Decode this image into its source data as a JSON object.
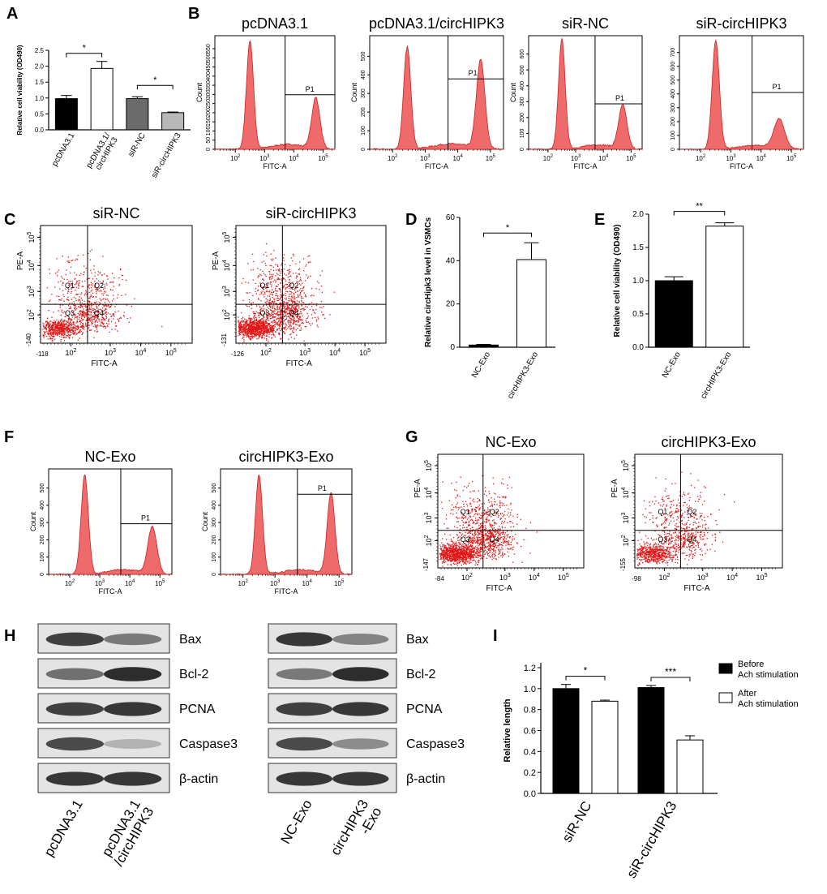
{
  "panels": {
    "A": "A",
    "B": "B",
    "C": "C",
    "D": "D",
    "E": "E",
    "F": "F",
    "G": "G",
    "H": "H",
    "I": "I"
  },
  "colors": {
    "histogram_fill": "#ef6a6a",
    "histogram_stroke": "#cc2222",
    "dots": "#e01818",
    "black": "#000000",
    "white": "#ffffff",
    "darkgray": "#6b6b6b",
    "lightgray": "#b8b8b8"
  },
  "chart_data": [
    {
      "id": "A",
      "type": "bar",
      "ylabel": "Relative cell viability (OD490)",
      "ylim": [
        0,
        2.5
      ],
      "yticks": [
        "0.0",
        "0.5",
        "1.0",
        "1.5",
        "2.0",
        "2.5"
      ],
      "categories": [
        "pcDNA3.1",
        "pcDNA3.1/ circHIPK3",
        "siR-NC",
        "siR-circHIPK3"
      ],
      "values": [
        0.98,
        1.93,
        0.98,
        0.54
      ],
      "errors": [
        0.1,
        0.22,
        0.06,
        0.02
      ],
      "fills": [
        "black",
        "white",
        "darkgray",
        "lightgray"
      ],
      "significance": [
        "*",
        "*"
      ]
    },
    {
      "id": "D",
      "type": "bar",
      "ylabel": "Relative circHipk3  level in VSMCs",
      "ylim": [
        0,
        60
      ],
      "yticks": [
        "0",
        "20",
        "40",
        "60"
      ],
      "categories": [
        "NC-Exo",
        "circHIPK3-Exo"
      ],
      "values": [
        1,
        40.5
      ],
      "errors": [
        0.3,
        7.8
      ],
      "fills": [
        "black",
        "white"
      ],
      "significance": [
        "*"
      ]
    },
    {
      "id": "E",
      "type": "bar",
      "ylabel": "Relative cell viability (OD490)",
      "ylim": [
        0,
        2.0
      ],
      "yticks": [
        "0.0",
        "0.5",
        "1.0",
        "1.5",
        "2.0"
      ],
      "categories": [
        "NC-Exo",
        "circHIPK3-Exo"
      ],
      "values": [
        1.0,
        1.82
      ],
      "errors": [
        0.06,
        0.05
      ],
      "fills": [
        "black",
        "white"
      ],
      "significance": [
        "**"
      ]
    },
    {
      "id": "I",
      "type": "bar",
      "ylabel": "Relative length",
      "ylim": [
        0,
        1.2
      ],
      "yticks": [
        "0.0",
        "0.2",
        "0.4",
        "0.6",
        "0.8",
        "1.0",
        "1.2"
      ],
      "categories": [
        "siR-NC",
        "siR-circHIPK3"
      ],
      "series": [
        {
          "name": "Before Ach stimulation",
          "values": [
            1.0,
            1.01
          ],
          "errors": [
            0.04,
            0.02
          ]
        },
        {
          "name": "After Ach stimulation",
          "values": [
            0.88,
            0.51
          ],
          "errors": [
            0.01,
            0.04
          ]
        }
      ],
      "legend": [
        {
          "line1": "Before",
          "line2": "Ach stimulation"
        },
        {
          "line1": "After",
          "line2": "Ach stimulation"
        }
      ],
      "significance": [
        "*",
        "***"
      ]
    }
  ],
  "histograms": [
    {
      "panel": "B",
      "title": "pcDNA3.1",
      "ylabel": "Count",
      "xlabel": "FITC-A",
      "gate": "P1",
      "yticks": [
        "0",
        "50",
        "100",
        "150",
        "200",
        "250",
        "300",
        "350",
        "400",
        "450",
        "500",
        "550"
      ],
      "ymax": 570,
      "peaks": [
        {
          "x": 2.5,
          "h": 545,
          "w": 0.12
        },
        {
          "x": 4.75,
          "h": 255,
          "w": 0.14
        }
      ],
      "gate_level": 0.48
    },
    {
      "panel": "B",
      "title": "pcDNA3.1/circHIPK3",
      "ylabel": "Count",
      "xlabel": "FITC-A",
      "gate": "P1",
      "yticks": [
        "0",
        "100",
        "200",
        "300",
        "400",
        "500"
      ],
      "ymax": 520,
      "peaks": [
        {
          "x": 2.45,
          "h": 470,
          "w": 0.11
        },
        {
          "x": 4.7,
          "h": 405,
          "w": 0.13
        }
      ],
      "gate_level": 0.62
    },
    {
      "panel": "B",
      "title": "siR-NC",
      "ylabel": "Count",
      "xlabel": "FITC-A",
      "gate": "P1",
      "yticks": [
        "0",
        "100",
        "200",
        "300",
        "400",
        "500",
        "600"
      ],
      "ymax": 630,
      "peaks": [
        {
          "x": 2.5,
          "h": 610,
          "w": 0.12
        },
        {
          "x": 4.7,
          "h": 240,
          "w": 0.15
        }
      ],
      "gate_level": 0.4
    },
    {
      "panel": "B",
      "title": "siR-circHIPK3",
      "ylabel": "",
      "xlabel": "FITC-A",
      "gate": "P1",
      "yticks": [
        "0",
        "100",
        "200",
        "300",
        "400",
        "500",
        "600",
        "700"
      ],
      "ymax": 740,
      "peaks": [
        {
          "x": 2.5,
          "h": 710,
          "w": 0.12
        },
        {
          "x": 4.6,
          "h": 190,
          "w": 0.18
        }
      ],
      "gate_level": 0.5
    },
    {
      "panel": "F",
      "title": "NC-Exo",
      "ylabel": "Count",
      "xlabel": "FITC-A",
      "gate": "P1",
      "yticks": [
        "0",
        "100",
        "200",
        "300",
        "400",
        "500"
      ],
      "ymax": 560,
      "peaks": [
        {
          "x": 2.5,
          "h": 530,
          "w": 0.12
        },
        {
          "x": 4.75,
          "h": 250,
          "w": 0.15
        }
      ],
      "gate_level": 0.48
    },
    {
      "panel": "F",
      "title": "circHIPK3-Exo",
      "ylabel": "Count",
      "xlabel": "FITC-A",
      "gate": "P1",
      "yticks": [
        "0",
        "100",
        "200",
        "300",
        "400",
        "500"
      ],
      "ymax": 560,
      "peaks": [
        {
          "x": 2.5,
          "h": 530,
          "w": 0.11
        },
        {
          "x": 4.75,
          "h": 430,
          "w": 0.12
        }
      ],
      "gate_level": 0.76
    }
  ],
  "scatters": [
    {
      "panel": "C",
      "title": "siR-NC",
      "ylabel": "PE-A",
      "xlabel": "FITC-A",
      "xmin": "-118",
      "ymin": "-140",
      "quadrants": [
        "Q1",
        "Q2",
        "Q3",
        "Q4"
      ],
      "density": 1.0
    },
    {
      "panel": "C",
      "title": "siR-circHIPK3",
      "ylabel": "PE-A",
      "xlabel": "FITC-A",
      "xmin": "-126",
      "ymin": "-131",
      "quadrants": [
        "Q1",
        "Q2",
        "Q3",
        "Q4"
      ],
      "density": 1.5
    },
    {
      "panel": "G",
      "title": "NC-Exo",
      "ylabel": "PE-A",
      "xlabel": "FITC-A",
      "xmin": "-84",
      "ymin": "-147",
      "quadrants": [
        "Q1",
        "Q2",
        "Q3",
        "Q4"
      ],
      "density": 1.5
    },
    {
      "panel": "G",
      "title": "circHIPK3-Exo",
      "ylabel": "PE-A",
      "xlabel": "FITC-A",
      "xmin": "-98",
      "ymin": "-155",
      "quadrants": [
        "Q1",
        "Q2",
        "Q3",
        "Q4"
      ],
      "density": 0.9
    }
  ],
  "flow_axis": {
    "hist_xticks": [
      "10^2",
      "10^3",
      "10^4",
      "10^5"
    ],
    "scatter_xticks": [
      "10^2",
      "10^3",
      "10^4",
      "10^5"
    ],
    "scatter_yticks": [
      "10^2",
      "10^3",
      "10^4",
      "10^5"
    ]
  },
  "blots": [
    {
      "proteins": [
        "Bax",
        "Bcl-2",
        "PCNA",
        "Caspase3",
        "β-actin"
      ],
      "lanes": [
        "pcDNA3.1",
        "pcDNA3.1 /circHIPK3"
      ],
      "intensity": [
        [
          0.85,
          0.55
        ],
        [
          0.6,
          0.95
        ],
        [
          0.85,
          0.9
        ],
        [
          0.8,
          0.25
        ],
        [
          0.9,
          0.9
        ]
      ]
    },
    {
      "proteins": [
        "Bax",
        "Bcl-2",
        "PCNA",
        "Caspase3",
        "β-actin"
      ],
      "lanes": [
        "NC-Exo",
        "circHIPK3 -Exo"
      ],
      "intensity": [
        [
          0.9,
          0.5
        ],
        [
          0.55,
          0.95
        ],
        [
          0.85,
          0.9
        ],
        [
          0.8,
          0.45
        ],
        [
          0.9,
          0.9
        ]
      ]
    }
  ]
}
